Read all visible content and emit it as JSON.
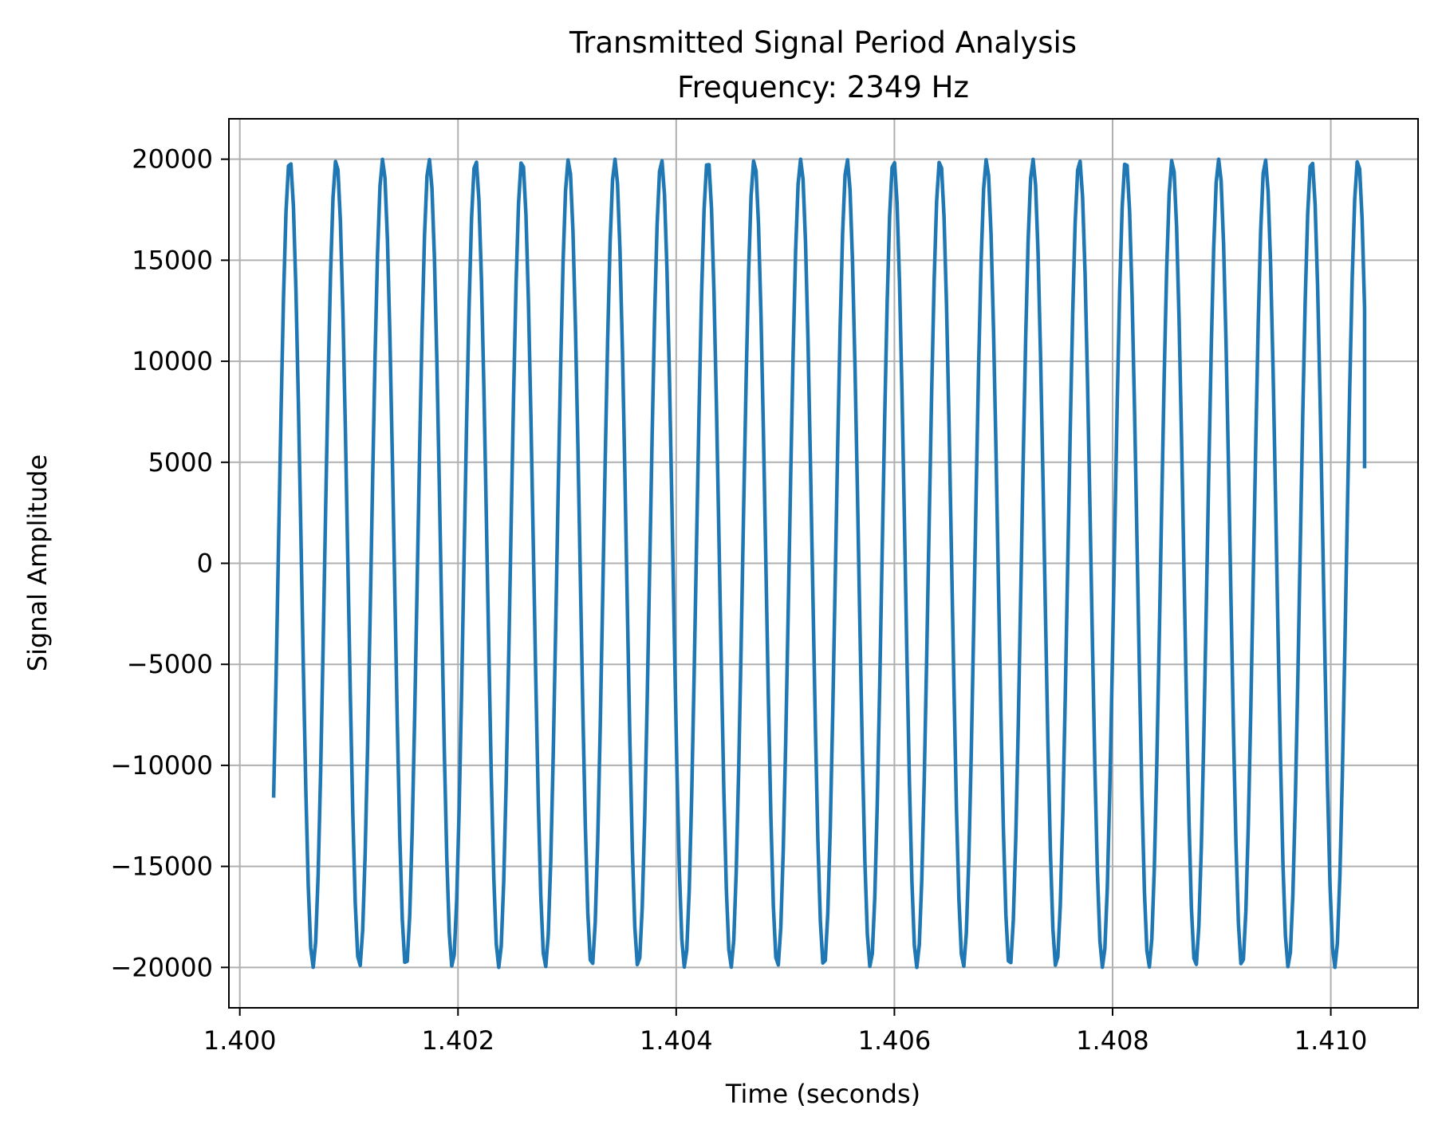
{
  "chart_data": {
    "type": "line",
    "title_line1": "Transmitted Signal Period Analysis",
    "title_line2": "Frequency: 2349 Hz",
    "xlabel": "Time (seconds)",
    "ylabel": "Signal Amplitude",
    "xlim": [
      1.3999,
      1.4108
    ],
    "ylim": [
      -22000,
      22000
    ],
    "x_ticks": [
      1.4,
      1.402,
      1.404,
      1.406,
      1.408,
      1.41
    ],
    "x_tick_labels": [
      "1.400",
      "1.402",
      "1.404",
      "1.406",
      "1.408",
      "1.410"
    ],
    "y_ticks": [
      -20000,
      -15000,
      -10000,
      -5000,
      0,
      5000,
      10000,
      15000,
      20000
    ],
    "y_tick_labels": [
      "−20000",
      "−15000",
      "−10000",
      "−5000",
      "0",
      "5000",
      "10000",
      "15000",
      "20000"
    ],
    "grid": true,
    "series": [
      {
        "color": "#1f77b4",
        "frequency_hz": 2349,
        "amplitude": 20000,
        "t_start": 1.40031,
        "t_end": 1.41031,
        "y_start": -11600,
        "y_end": 4700
      }
    ]
  }
}
